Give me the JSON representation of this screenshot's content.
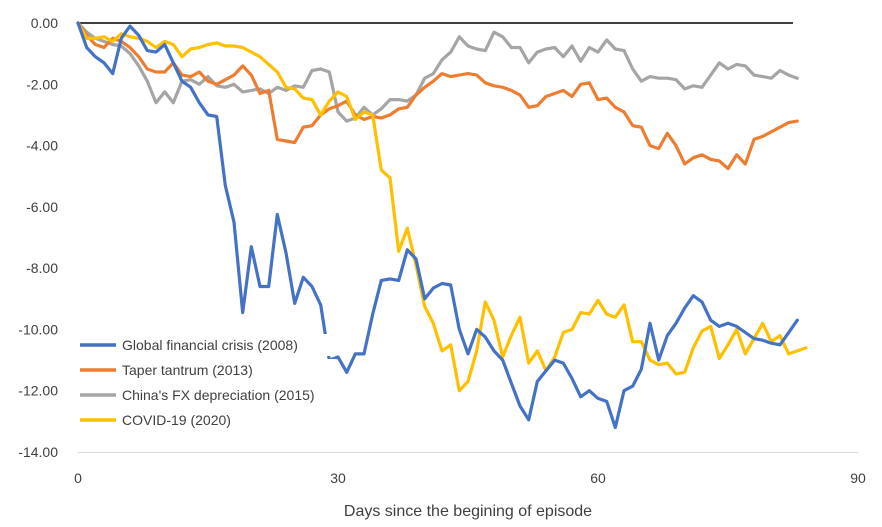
{
  "chart_data": {
    "type": "line",
    "title": "",
    "xlabel": "Days since the begining of episode",
    "ylabel": "",
    "xlim": [
      0,
      90
    ],
    "ylim": [
      -14,
      0
    ],
    "x_ticks": [
      0,
      30,
      60,
      90
    ],
    "x_tick_labels": [
      "0",
      "30",
      "60",
      "90"
    ],
    "y_ticks": [
      0,
      -2,
      -4,
      -6,
      -8,
      -10,
      -12,
      -14
    ],
    "y_tick_labels": [
      "0.00",
      "-2.00",
      "-4.00",
      "-6.00",
      "-8.00",
      "-10.00",
      "-12.00",
      "-14.00"
    ],
    "grid": false,
    "legend_position": "lower-left",
    "series": [
      {
        "name": "Global financial crisis (2008)",
        "color": "#4472C4",
        "values": [
          0,
          -0.8,
          -1.1,
          -1.3,
          -1.65,
          -0.5,
          -0.1,
          -0.4,
          -0.9,
          -0.95,
          -0.7,
          -1.3,
          -1.9,
          -2.1,
          -2.6,
          -3.0,
          -3.05,
          -5.3,
          -6.5,
          -9.45,
          -7.3,
          -8.6,
          -8.6,
          -6.25,
          -7.5,
          -9.15,
          -8.3,
          -8.6,
          -9.2,
          -11.0,
          -10.9,
          -11.4,
          -10.8,
          -10.8,
          -9.5,
          -8.4,
          -8.35,
          -8.4,
          -7.4,
          -7.7,
          -9.0,
          -8.65,
          -8.5,
          -8.55,
          -10.0,
          -10.8,
          -10.0,
          -10.25,
          -10.7,
          -11.0,
          -11.75,
          -12.5,
          -12.95,
          -11.7,
          -11.35,
          -11.0,
          -11.1,
          -11.6,
          -12.2,
          -12.0,
          -12.25,
          -12.35,
          -13.2,
          -12.0,
          -11.85,
          -11.3,
          -9.8,
          -11.0,
          -10.2,
          -9.8,
          -9.3,
          -8.9,
          -9.1,
          -9.7,
          -9.9,
          -9.8,
          -9.9,
          -10.1,
          -10.3,
          -10.35,
          -10.45,
          -10.5,
          -10.1,
          -9.7
        ]
      },
      {
        "name": "Taper tantrum (2013)",
        "color": "#ED7D31",
        "values": [
          0,
          -0.4,
          -0.7,
          -0.8,
          -0.5,
          -0.6,
          -0.8,
          -1.1,
          -1.5,
          -1.6,
          -1.6,
          -1.3,
          -1.7,
          -1.75,
          -1.6,
          -1.9,
          -2.0,
          -1.85,
          -1.7,
          -1.4,
          -1.7,
          -2.3,
          -2.2,
          -3.8,
          -3.85,
          -3.9,
          -3.4,
          -3.35,
          -3.0,
          -2.8,
          -2.7,
          -2.55,
          -3.0,
          -3.15,
          -3.05,
          -3.1,
          -3.0,
          -2.8,
          -2.75,
          -2.35,
          -2.1,
          -1.9,
          -1.65,
          -1.75,
          -1.7,
          -1.65,
          -1.7,
          -1.95,
          -2.05,
          -2.1,
          -2.2,
          -2.35,
          -2.75,
          -2.7,
          -2.4,
          -2.3,
          -2.2,
          -2.4,
          -2.0,
          -1.95,
          -2.5,
          -2.45,
          -2.75,
          -2.9,
          -3.35,
          -3.4,
          -4.0,
          -4.1,
          -3.6,
          -4.0,
          -4.6,
          -4.4,
          -4.3,
          -4.45,
          -4.5,
          -4.75,
          -4.3,
          -4.6,
          -3.8,
          -3.7,
          -3.55,
          -3.4,
          -3.25,
          -3.2
        ]
      },
      {
        "name": "China's FX depreciation (2015)",
        "color": "#A5A5A5",
        "values": [
          0,
          -0.3,
          -0.5,
          -0.6,
          -0.7,
          -0.75,
          -1.0,
          -1.4,
          -1.9,
          -2.6,
          -2.25,
          -2.6,
          -1.9,
          -1.85,
          -2.0,
          -1.75,
          -2.05,
          -2.1,
          -2.0,
          -2.25,
          -2.2,
          -2.15,
          -2.3,
          -2.1,
          -2.2,
          -2.05,
          -2.1,
          -1.55,
          -1.5,
          -1.6,
          -2.9,
          -3.2,
          -3.1,
          -2.75,
          -3.0,
          -2.8,
          -2.5,
          -2.5,
          -2.55,
          -2.35,
          -1.8,
          -1.65,
          -1.2,
          -0.95,
          -0.45,
          -0.75,
          -0.85,
          -0.9,
          -0.3,
          -0.45,
          -0.8,
          -0.8,
          -1.3,
          -0.95,
          -0.85,
          -0.8,
          -1.1,
          -0.75,
          -1.25,
          -0.8,
          -0.95,
          -0.55,
          -0.85,
          -0.9,
          -1.5,
          -1.9,
          -1.75,
          -1.8,
          -1.8,
          -1.85,
          -2.15,
          -2.05,
          -2.1,
          -1.7,
          -1.3,
          -1.5,
          -1.35,
          -1.4,
          -1.7,
          -1.75,
          -1.8,
          -1.55,
          -1.7,
          -1.8
        ]
      },
      {
        "name": "COVID-19 (2020)",
        "color": "#FFC000",
        "values": [
          0,
          -0.5,
          -0.5,
          -0.45,
          -0.6,
          -0.35,
          -0.45,
          -0.5,
          -0.6,
          -0.8,
          -0.6,
          -0.7,
          -1.1,
          -0.85,
          -0.8,
          -0.7,
          -0.65,
          -0.75,
          -0.75,
          -0.8,
          -0.95,
          -1.1,
          -1.35,
          -1.6,
          -2.1,
          -2.15,
          -2.45,
          -2.5,
          -3.0,
          -2.55,
          -2.25,
          -2.4,
          -3.15,
          -2.9,
          -3.0,
          -4.8,
          -5.05,
          -7.45,
          -6.7,
          -7.9,
          -9.25,
          -9.8,
          -10.7,
          -10.5,
          -12.0,
          -11.7,
          -10.7,
          -9.1,
          -9.7,
          -10.9,
          -10.2,
          -9.6,
          -11.1,
          -10.7,
          -11.35,
          -10.9,
          -10.1,
          -10.0,
          -9.45,
          -9.5,
          -9.05,
          -9.5,
          -9.6,
          -9.2,
          -10.4,
          -10.4,
          -11.0,
          -11.15,
          -11.1,
          -11.45,
          -11.4,
          -10.6,
          -10.05,
          -9.9,
          -10.95,
          -10.5,
          -10.0,
          -10.8,
          -10.3,
          -9.8,
          -10.4,
          -10.2,
          -10.8,
          -10.7,
          -10.6
        ]
      }
    ]
  }
}
